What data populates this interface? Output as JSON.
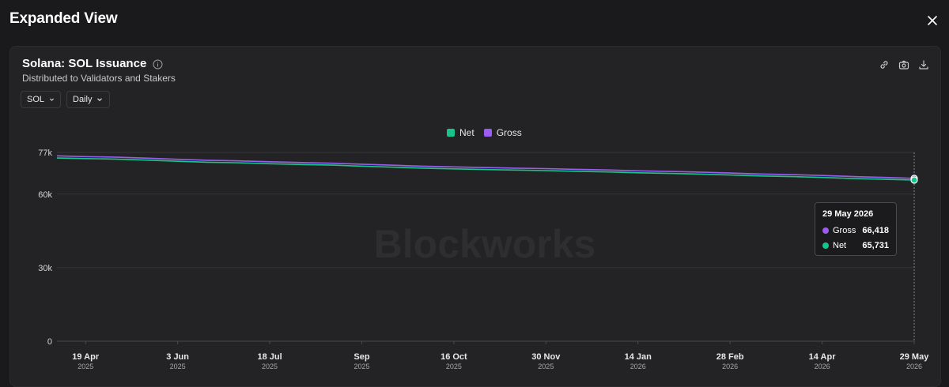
{
  "modal": {
    "title": "Expanded View"
  },
  "chart_header": {
    "title": "Solana: SOL Issuance",
    "subtitle": "Distributed to Validators and Stakers"
  },
  "controls": {
    "unit": "SOL",
    "interval": "Daily"
  },
  "icons": [
    "close-icon",
    "info-icon",
    "link-icon",
    "camera-icon",
    "download-icon",
    "chevron-down-icon"
  ],
  "watermark": "Blockworks",
  "colors": {
    "net": "#19c48a",
    "gross": "#9b5cf0",
    "background": "#1a1a1c",
    "grid": "#3a3a3d"
  },
  "tooltip": {
    "date": "29 May 2026",
    "rows": [
      {
        "name": "Gross",
        "value": "66,418"
      },
      {
        "name": "Net",
        "value": "65,731"
      }
    ]
  },
  "chart_data": {
    "type": "line",
    "legend": "top-center",
    "grid": true,
    "y_ticks": [
      0,
      30000,
      60000,
      77000
    ],
    "y_tick_labels": [
      "0",
      "30k",
      "60k",
      "77k"
    ],
    "ylim": [
      0,
      77000
    ],
    "x_ticks": [
      {
        "date": "2025-04-19",
        "line1": "19 Apr",
        "line2": "2025"
      },
      {
        "date": "2025-06-03",
        "line1": "3 Jun",
        "line2": "2025"
      },
      {
        "date": "2025-07-18",
        "line1": "18 Jul",
        "line2": "2025"
      },
      {
        "date": "2025-09-01",
        "line1": "Sep",
        "line2": "2025"
      },
      {
        "date": "2025-10-16",
        "line1": "16 Oct",
        "line2": "2025"
      },
      {
        "date": "2025-11-30",
        "line1": "30 Nov",
        "line2": "2025"
      },
      {
        "date": "2026-01-14",
        "line1": "14 Jan",
        "line2": "2026"
      },
      {
        "date": "2026-02-28",
        "line1": "28 Feb",
        "line2": "2026"
      },
      {
        "date": "2026-04-14",
        "line1": "14 Apr",
        "line2": "2026"
      },
      {
        "date": "2026-05-29",
        "line1": "29 May",
        "line2": "2026"
      }
    ],
    "xlim": [
      "2025-04-05",
      "2026-05-29"
    ],
    "series": [
      {
        "name": "Gross",
        "color": "#9b5cf0",
        "points": [
          [
            "2025-04-05",
            75600
          ],
          [
            "2025-04-19",
            75300
          ],
          [
            "2025-05-03",
            75100
          ],
          [
            "2025-05-17",
            74700
          ],
          [
            "2025-06-03",
            74200
          ],
          [
            "2025-06-17",
            73800
          ],
          [
            "2025-07-01",
            73600
          ],
          [
            "2025-07-18",
            73200
          ],
          [
            "2025-08-01",
            72900
          ],
          [
            "2025-08-18",
            72600
          ],
          [
            "2025-09-01",
            72200
          ],
          [
            "2025-09-15",
            71800
          ],
          [
            "2025-10-01",
            71400
          ],
          [
            "2025-10-16",
            71100
          ],
          [
            "2025-11-01",
            70800
          ],
          [
            "2025-11-15",
            70600
          ],
          [
            "2025-11-30",
            70400
          ],
          [
            "2025-12-15",
            70100
          ],
          [
            "2026-01-01",
            69800
          ],
          [
            "2026-01-14",
            69500
          ],
          [
            "2026-02-01",
            69200
          ],
          [
            "2026-02-15",
            68900
          ],
          [
            "2026-02-28",
            68600
          ],
          [
            "2026-03-15",
            68200
          ],
          [
            "2026-04-01",
            67900
          ],
          [
            "2026-04-14",
            67600
          ],
          [
            "2026-05-01",
            67100
          ],
          [
            "2026-05-15",
            66800
          ],
          [
            "2026-05-29",
            66418
          ]
        ]
      },
      {
        "name": "Net",
        "color": "#19c48a",
        "points": [
          [
            "2025-04-05",
            74700
          ],
          [
            "2025-04-19",
            74500
          ],
          [
            "2025-05-03",
            74300
          ],
          [
            "2025-05-17",
            73900
          ],
          [
            "2025-06-03",
            73400
          ],
          [
            "2025-06-17",
            73000
          ],
          [
            "2025-07-01",
            72800
          ],
          [
            "2025-07-18",
            72400
          ],
          [
            "2025-08-01",
            72100
          ],
          [
            "2025-08-18",
            71800
          ],
          [
            "2025-09-01",
            71400
          ],
          [
            "2025-09-15",
            71000
          ],
          [
            "2025-10-01",
            70600
          ],
          [
            "2025-10-16",
            70300
          ],
          [
            "2025-11-01",
            70000
          ],
          [
            "2025-11-15",
            69800
          ],
          [
            "2025-11-30",
            69600
          ],
          [
            "2025-12-15",
            69300
          ],
          [
            "2026-01-01",
            69000
          ],
          [
            "2026-01-14",
            68700
          ],
          [
            "2026-02-01",
            68400
          ],
          [
            "2026-02-15",
            68100
          ],
          [
            "2026-02-28",
            67800
          ],
          [
            "2026-03-15",
            67400
          ],
          [
            "2026-04-01",
            67100
          ],
          [
            "2026-04-14",
            66800
          ],
          [
            "2026-05-01",
            66300
          ],
          [
            "2026-05-15",
            66000
          ],
          [
            "2026-05-29",
            65731
          ]
        ]
      }
    ]
  }
}
